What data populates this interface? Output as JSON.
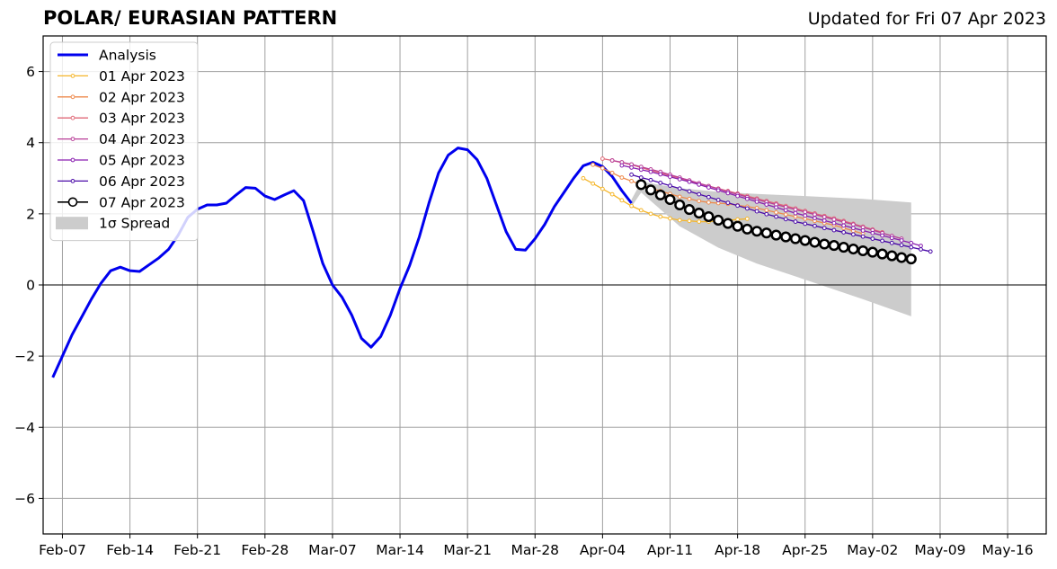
{
  "header": {
    "title": "POLAR/ EURASIAN  PATTERN",
    "updated": "Updated for Fri 07 Apr 2023"
  },
  "chart_data": {
    "type": "line",
    "title": "POLAR/ EURASIAN  PATTERN",
    "subtitle": "Updated for Fri 07 Apr 2023",
    "xlabel": "",
    "ylabel": "",
    "ylim": [
      -7,
      7
    ],
    "xlim": [
      "2023-02-05",
      "2023-05-20"
    ],
    "yticks": [
      -6,
      -4,
      -2,
      0,
      2,
      4,
      6
    ],
    "xticks": [
      "2023-02-07",
      "2023-02-14",
      "2023-02-21",
      "2023-02-28",
      "2023-03-07",
      "2023-03-14",
      "2023-03-21",
      "2023-03-28",
      "2023-04-04",
      "2023-04-11",
      "2023-04-18",
      "2023-04-25",
      "2023-05-02",
      "2023-05-09",
      "2023-05-16"
    ],
    "xtick_labels": [
      "Feb-07",
      "Feb-14",
      "Feb-21",
      "Feb-28",
      "Mar-07",
      "Mar-14",
      "Mar-21",
      "Mar-28",
      "Apr-04",
      "Apr-11",
      "Apr-18",
      "Apr-25",
      "May-02",
      "May-09",
      "May-16"
    ],
    "grid": true,
    "legend_position": "top-left",
    "zero_line": true,
    "series": [
      {
        "name": "Analysis",
        "color": "#0000ee",
        "start": "2023-02-06",
        "values": [
          -2.6,
          -2.0,
          -1.4,
          -0.9,
          -0.4,
          0.05,
          0.4,
          0.5,
          0.4,
          0.38,
          0.57,
          0.76,
          1.0,
          1.4,
          1.9,
          2.13,
          2.25,
          2.25,
          2.3,
          2.53,
          2.74,
          2.72,
          2.5,
          2.4,
          2.53,
          2.65,
          2.37,
          1.5,
          0.6,
          0.0,
          -0.35,
          -0.85,
          -1.5,
          -1.75,
          -1.45,
          -0.85,
          -0.1,
          0.55,
          1.35,
          2.3,
          3.15,
          3.65,
          3.85,
          3.8,
          3.52,
          3.0,
          2.25,
          1.5,
          1.0,
          0.98,
          1.3,
          1.7,
          2.2,
          2.6,
          3.0,
          3.35,
          3.45,
          3.33,
          3.05,
          2.65,
          2.3
        ]
      },
      {
        "name": "01 Apr 2023",
        "color": "#f5b62a",
        "start": "2023-04-02",
        "values": [
          3.0,
          2.85,
          2.7,
          2.55,
          2.38,
          2.22,
          2.1,
          2.0,
          1.92,
          1.87,
          1.82,
          1.8,
          1.78,
          1.78,
          1.8,
          1.82,
          1.84,
          1.86
        ]
      },
      {
        "name": "02 Apr 2023",
        "color": "#ee8a4c",
        "start": "2023-04-03",
        "values": [
          3.38,
          3.28,
          3.15,
          3.02,
          2.92,
          2.82,
          2.72,
          2.64,
          2.56,
          2.48,
          2.42,
          2.36,
          2.32,
          2.3,
          2.28,
          2.24,
          2.2,
          2.16,
          2.1,
          2.04,
          1.98,
          1.92,
          1.86,
          1.8,
          1.74,
          1.68,
          1.6,
          1.52,
          1.44
        ]
      },
      {
        "name": "03 Apr 2023",
        "color": "#e06a78",
        "start": "2023-04-04",
        "values": [
          3.55,
          3.5,
          3.44,
          3.38,
          3.3,
          3.22,
          3.15,
          3.07,
          3.0,
          2.92,
          2.85,
          2.78,
          2.71,
          2.64,
          2.57,
          2.5,
          2.43,
          2.36,
          2.29,
          2.22,
          2.15,
          2.08,
          2.01,
          1.94,
          1.87,
          1.8,
          1.72,
          1.64,
          1.56,
          1.48
        ]
      },
      {
        "name": "04 Apr 2023",
        "color": "#b83e98",
        "start": "2023-04-05",
        "values": [
          3.5,
          3.45,
          3.39,
          3.32,
          3.25,
          3.18,
          3.1,
          3.02,
          2.94,
          2.86,
          2.78,
          2.7,
          2.62,
          2.55,
          2.47,
          2.4,
          2.33,
          2.26,
          2.19,
          2.12,
          2.05,
          1.98,
          1.91,
          1.84,
          1.77,
          1.7,
          1.62,
          1.54,
          1.46,
          1.38,
          1.3
        ]
      },
      {
        "name": "05 Apr 2023",
        "color": "#8a1fb0",
        "start": "2023-04-06",
        "values": [
          3.36,
          3.3,
          3.24,
          3.18,
          3.11,
          3.04,
          2.97,
          2.9,
          2.82,
          2.74,
          2.66,
          2.58,
          2.5,
          2.42,
          2.34,
          2.26,
          2.18,
          2.1,
          2.02,
          1.95,
          1.88,
          1.81,
          1.74,
          1.67,
          1.6,
          1.53,
          1.46,
          1.39,
          1.32,
          1.25,
          1.18,
          1.1
        ]
      },
      {
        "name": "06 Apr 2023",
        "color": "#4a0aa8",
        "start": "2023-04-07",
        "values": [
          3.1,
          3.02,
          2.95,
          2.87,
          2.79,
          2.71,
          2.63,
          2.55,
          2.47,
          2.39,
          2.31,
          2.23,
          2.15,
          2.07,
          1.99,
          1.92,
          1.85,
          1.78,
          1.72,
          1.66,
          1.6,
          1.54,
          1.48,
          1.42,
          1.36,
          1.3,
          1.24,
          1.18,
          1.12,
          1.06,
          1.0,
          0.94
        ]
      },
      {
        "name": "07 Apr 2023",
        "color": "#000000",
        "start": "2023-04-08",
        "values": [
          2.82,
          2.67,
          2.53,
          2.4,
          2.25,
          2.12,
          2.02,
          1.92,
          1.82,
          1.73,
          1.65,
          1.57,
          1.51,
          1.46,
          1.4,
          1.35,
          1.3,
          1.25,
          1.2,
          1.15,
          1.11,
          1.06,
          1.01,
          0.96,
          0.92,
          0.87,
          0.82,
          0.77,
          0.73
        ]
      }
    ],
    "spread": {
      "name": "1σ Spread",
      "color": "#cccccc",
      "x": [
        "2023-04-07",
        "2023-04-08",
        "2023-04-12",
        "2023-04-16",
        "2023-04-20",
        "2023-04-25",
        "2023-05-01",
        "2023-05-06"
      ],
      "upper": [
        2.4,
        2.9,
        2.72,
        2.62,
        2.56,
        2.5,
        2.42,
        2.32
      ],
      "lower": [
        2.2,
        2.6,
        1.65,
        1.05,
        0.6,
        0.15,
        -0.4,
        -0.88
      ]
    }
  }
}
